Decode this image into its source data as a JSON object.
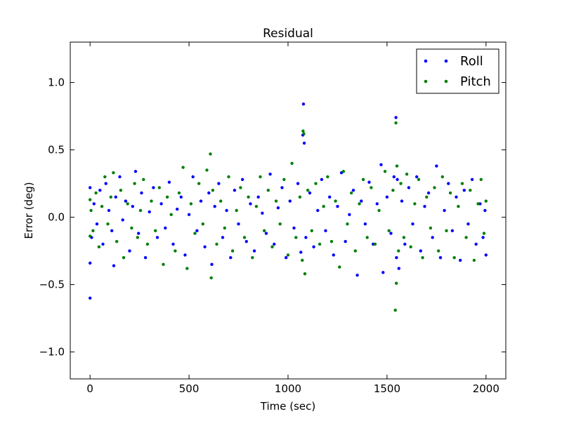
{
  "chart_data": {
    "type": "scatter",
    "title": "Residual",
    "xlabel": "Time (sec)",
    "ylabel": "Error (deg)",
    "xlim": [
      -100,
      2100
    ],
    "ylim": [
      -1.2,
      1.3
    ],
    "xticks": [
      {
        "value": 0,
        "label": "0"
      },
      {
        "value": 500,
        "label": "500"
      },
      {
        "value": 1000,
        "label": "1000"
      },
      {
        "value": 1500,
        "label": "1500"
      },
      {
        "value": 2000,
        "label": "2000"
      }
    ],
    "yticks": [
      {
        "value": -1.0,
        "label": "−1.0"
      },
      {
        "value": -0.5,
        "label": "−0.5"
      },
      {
        "value": 0.0,
        "label": "0.0"
      },
      {
        "value": 0.5,
        "label": "0.5"
      },
      {
        "value": 1.0,
        "label": "1.0"
      }
    ],
    "grid": false,
    "legend_position": "top-right",
    "series": [
      {
        "name": "Roll",
        "color": "#0000ff",
        "points": [
          [
            0,
            -0.6
          ],
          [
            0,
            -0.34
          ],
          [
            0,
            0.22
          ],
          [
            8,
            -0.15
          ],
          [
            20,
            0.1
          ],
          [
            35,
            -0.05
          ],
          [
            50,
            0.2
          ],
          [
            65,
            -0.2
          ],
          [
            80,
            0.25
          ],
          [
            95,
            0.05
          ],
          [
            110,
            -0.1
          ],
          [
            120,
            -0.36
          ],
          [
            130,
            0.15
          ],
          [
            150,
            0.3
          ],
          [
            165,
            -0.02
          ],
          [
            180,
            0.12
          ],
          [
            200,
            -0.25
          ],
          [
            215,
            0.08
          ],
          [
            230,
            0.34
          ],
          [
            245,
            -0.12
          ],
          [
            260,
            0.18
          ],
          [
            280,
            -0.3
          ],
          [
            300,
            0.04
          ],
          [
            320,
            0.22
          ],
          [
            340,
            -0.15
          ],
          [
            360,
            0.1
          ],
          [
            380,
            -0.08
          ],
          [
            400,
            0.26
          ],
          [
            420,
            -0.2
          ],
          [
            440,
            0.06
          ],
          [
            460,
            0.15
          ],
          [
            480,
            -0.28
          ],
          [
            500,
            0.02
          ],
          [
            520,
            0.3
          ],
          [
            540,
            -0.1
          ],
          [
            560,
            0.12
          ],
          [
            580,
            -0.22
          ],
          [
            600,
            0.18
          ],
          [
            615,
            -0.35
          ],
          [
            630,
            0.08
          ],
          [
            650,
            0.25
          ],
          [
            670,
            -0.15
          ],
          [
            690,
            0.05
          ],
          [
            710,
            -0.3
          ],
          [
            730,
            0.2
          ],
          [
            750,
            -0.05
          ],
          [
            770,
            0.28
          ],
          [
            790,
            -0.18
          ],
          [
            810,
            0.1
          ],
          [
            830,
            -0.25
          ],
          [
            850,
            0.15
          ],
          [
            870,
            0.03
          ],
          [
            890,
            -0.12
          ],
          [
            910,
            0.32
          ],
          [
            930,
            -0.2
          ],
          [
            950,
            0.07
          ],
          [
            970,
            0.22
          ],
          [
            990,
            -0.3
          ],
          [
            1010,
            0.12
          ],
          [
            1030,
            -0.08
          ],
          [
            1050,
            0.25
          ],
          [
            1065,
            -0.26
          ],
          [
            1075,
            0.61
          ],
          [
            1078,
            0.84
          ],
          [
            1082,
            0.55
          ],
          [
            1090,
            -0.15
          ],
          [
            1110,
            0.18
          ],
          [
            1130,
            -0.22
          ],
          [
            1150,
            0.05
          ],
          [
            1170,
            0.28
          ],
          [
            1190,
            -0.1
          ],
          [
            1210,
            0.15
          ],
          [
            1230,
            -0.28
          ],
          [
            1250,
            0.08
          ],
          [
            1270,
            0.33
          ],
          [
            1290,
            -0.18
          ],
          [
            1310,
            0.02
          ],
          [
            1330,
            0.2
          ],
          [
            1350,
            -0.43
          ],
          [
            1370,
            0.12
          ],
          [
            1390,
            -0.05
          ],
          [
            1410,
            0.26
          ],
          [
            1430,
            -0.2
          ],
          [
            1450,
            0.1
          ],
          [
            1470,
            0.39
          ],
          [
            1480,
            -0.41
          ],
          [
            1500,
            0.15
          ],
          [
            1520,
            -0.12
          ],
          [
            1535,
            0.3
          ],
          [
            1545,
            0.74
          ],
          [
            1548,
            -0.3
          ],
          [
            1552,
            0.28
          ],
          [
            1560,
            -0.38
          ],
          [
            1575,
            0.12
          ],
          [
            1590,
            -0.2
          ],
          [
            1610,
            0.22
          ],
          [
            1630,
            -0.05
          ],
          [
            1650,
            0.3
          ],
          [
            1670,
            -0.25
          ],
          [
            1690,
            0.08
          ],
          [
            1710,
            0.18
          ],
          [
            1730,
            -0.15
          ],
          [
            1750,
            0.38
          ],
          [
            1770,
            -0.3
          ],
          [
            1790,
            0.05
          ],
          [
            1810,
            0.25
          ],
          [
            1830,
            -0.1
          ],
          [
            1850,
            0.15
          ],
          [
            1870,
            -0.32
          ],
          [
            1890,
            0.2
          ],
          [
            1910,
            -0.05
          ],
          [
            1930,
            0.28
          ],
          [
            1950,
            -0.2
          ],
          [
            1970,
            0.1
          ],
          [
            1985,
            -0.15
          ],
          [
            1995,
            0.05
          ],
          [
            2000,
            -0.28
          ]
        ]
      },
      {
        "name": "Pitch",
        "color": "#007f00",
        "points": [
          [
            0,
            0.13
          ],
          [
            0,
            -0.14
          ],
          [
            5,
            0.05
          ],
          [
            15,
            -0.1
          ],
          [
            30,
            0.18
          ],
          [
            45,
            -0.22
          ],
          [
            60,
            0.08
          ],
          [
            75,
            0.3
          ],
          [
            90,
            -0.05
          ],
          [
            105,
            0.15
          ],
          [
            118,
            0.33
          ],
          [
            135,
            -0.18
          ],
          [
            155,
            0.2
          ],
          [
            170,
            -0.3
          ],
          [
            190,
            0.1
          ],
          [
            210,
            -0.08
          ],
          [
            225,
            0.25
          ],
          [
            240,
            -0.15
          ],
          [
            255,
            0.05
          ],
          [
            270,
            0.28
          ],
          [
            290,
            -0.2
          ],
          [
            310,
            0.12
          ],
          [
            330,
            -0.1
          ],
          [
            350,
            0.22
          ],
          [
            370,
            -0.35
          ],
          [
            390,
            0.15
          ],
          [
            410,
            0.02
          ],
          [
            430,
            -0.25
          ],
          [
            450,
            0.18
          ],
          [
            470,
            0.37
          ],
          [
            490,
            -0.38
          ],
          [
            510,
            0.1
          ],
          [
            530,
            -0.12
          ],
          [
            550,
            0.25
          ],
          [
            570,
            -0.05
          ],
          [
            590,
            0.35
          ],
          [
            608,
            0.47
          ],
          [
            612,
            -0.45
          ],
          [
            620,
            0.2
          ],
          [
            640,
            -0.2
          ],
          [
            660,
            0.12
          ],
          [
            680,
            -0.08
          ],
          [
            700,
            0.3
          ],
          [
            720,
            -0.25
          ],
          [
            740,
            0.05
          ],
          [
            760,
            0.22
          ],
          [
            780,
            -0.15
          ],
          [
            800,
            0.15
          ],
          [
            820,
            -0.3
          ],
          [
            840,
            0.08
          ],
          [
            860,
            0.3
          ],
          [
            880,
            -0.1
          ],
          [
            900,
            0.2
          ],
          [
            920,
            -0.22
          ],
          [
            940,
            0.12
          ],
          [
            960,
            -0.05
          ],
          [
            980,
            0.28
          ],
          [
            1000,
            -0.28
          ],
          [
            1020,
            0.4
          ],
          [
            1040,
            -0.15
          ],
          [
            1060,
            0.15
          ],
          [
            1072,
            -0.32
          ],
          [
            1076,
            0.64
          ],
          [
            1080,
            0.62
          ],
          [
            1085,
            -0.42
          ],
          [
            1100,
            0.2
          ],
          [
            1120,
            -0.1
          ],
          [
            1140,
            0.25
          ],
          [
            1160,
            -0.2
          ],
          [
            1180,
            0.08
          ],
          [
            1200,
            0.3
          ],
          [
            1220,
            -0.18
          ],
          [
            1240,
            0.12
          ],
          [
            1260,
            -0.37
          ],
          [
            1280,
            0.34
          ],
          [
            1300,
            -0.05
          ],
          [
            1320,
            0.18
          ],
          [
            1340,
            -0.25
          ],
          [
            1360,
            0.1
          ],
          [
            1380,
            0.28
          ],
          [
            1400,
            -0.15
          ],
          [
            1420,
            0.22
          ],
          [
            1440,
            -0.2
          ],
          [
            1460,
            0.05
          ],
          [
            1490,
            0.34
          ],
          [
            1510,
            -0.1
          ],
          [
            1530,
            0.2
          ],
          [
            1542,
            -0.69
          ],
          [
            1545,
            0.7
          ],
          [
            1547,
            -0.49
          ],
          [
            1550,
            0.38
          ],
          [
            1558,
            -0.25
          ],
          [
            1570,
            0.25
          ],
          [
            1585,
            -0.15
          ],
          [
            1600,
            0.32
          ],
          [
            1620,
            -0.22
          ],
          [
            1640,
            0.1
          ],
          [
            1660,
            0.28
          ],
          [
            1680,
            -0.3
          ],
          [
            1700,
            0.15
          ],
          [
            1720,
            -0.08
          ],
          [
            1740,
            0.22
          ],
          [
            1760,
            -0.25
          ],
          [
            1780,
            0.3
          ],
          [
            1800,
            -0.1
          ],
          [
            1820,
            0.18
          ],
          [
            1840,
            -0.3
          ],
          [
            1860,
            0.08
          ],
          [
            1880,
            0.25
          ],
          [
            1900,
            -0.15
          ],
          [
            1920,
            0.2
          ],
          [
            1940,
            -0.32
          ],
          [
            1960,
            0.1
          ],
          [
            1975,
            0.28
          ],
          [
            1990,
            -0.12
          ],
          [
            2000,
            0.12
          ]
        ]
      }
    ]
  }
}
